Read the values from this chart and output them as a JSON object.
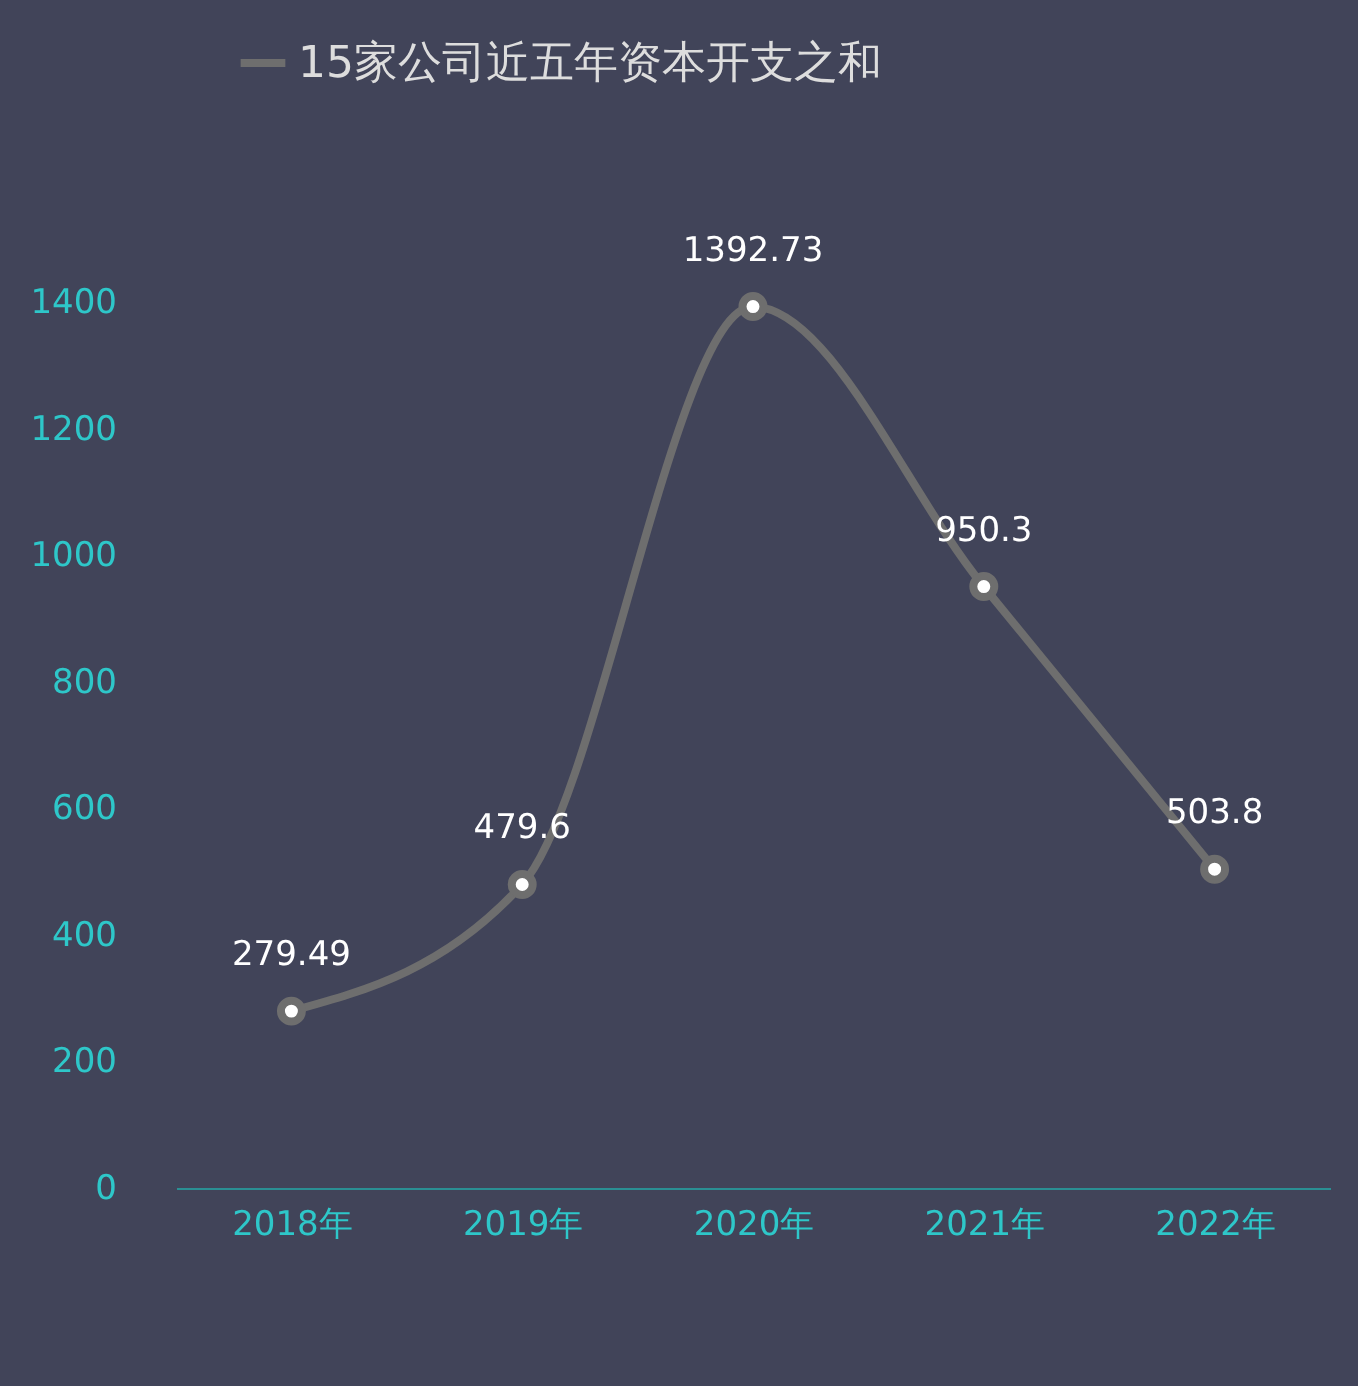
{
  "chart_data": {
    "type": "line",
    "categories": [
      "2018年",
      "2019年",
      "2020年",
      "2021年",
      "2022年"
    ],
    "series": [
      {
        "name": "15家公司近五年资本开支之和",
        "color": "#6e6e6e",
        "values": [
          279.49,
          479.6,
          1392.73,
          950.3,
          503.8
        ]
      }
    ],
    "ylim": [
      0,
      1400
    ],
    "yticks": [
      0,
      200,
      400,
      600,
      800,
      1000,
      1200,
      1400
    ],
    "grid": false,
    "legend": "top",
    "marker": "circle",
    "line_style": "solid",
    "data_labels": true
  }
}
